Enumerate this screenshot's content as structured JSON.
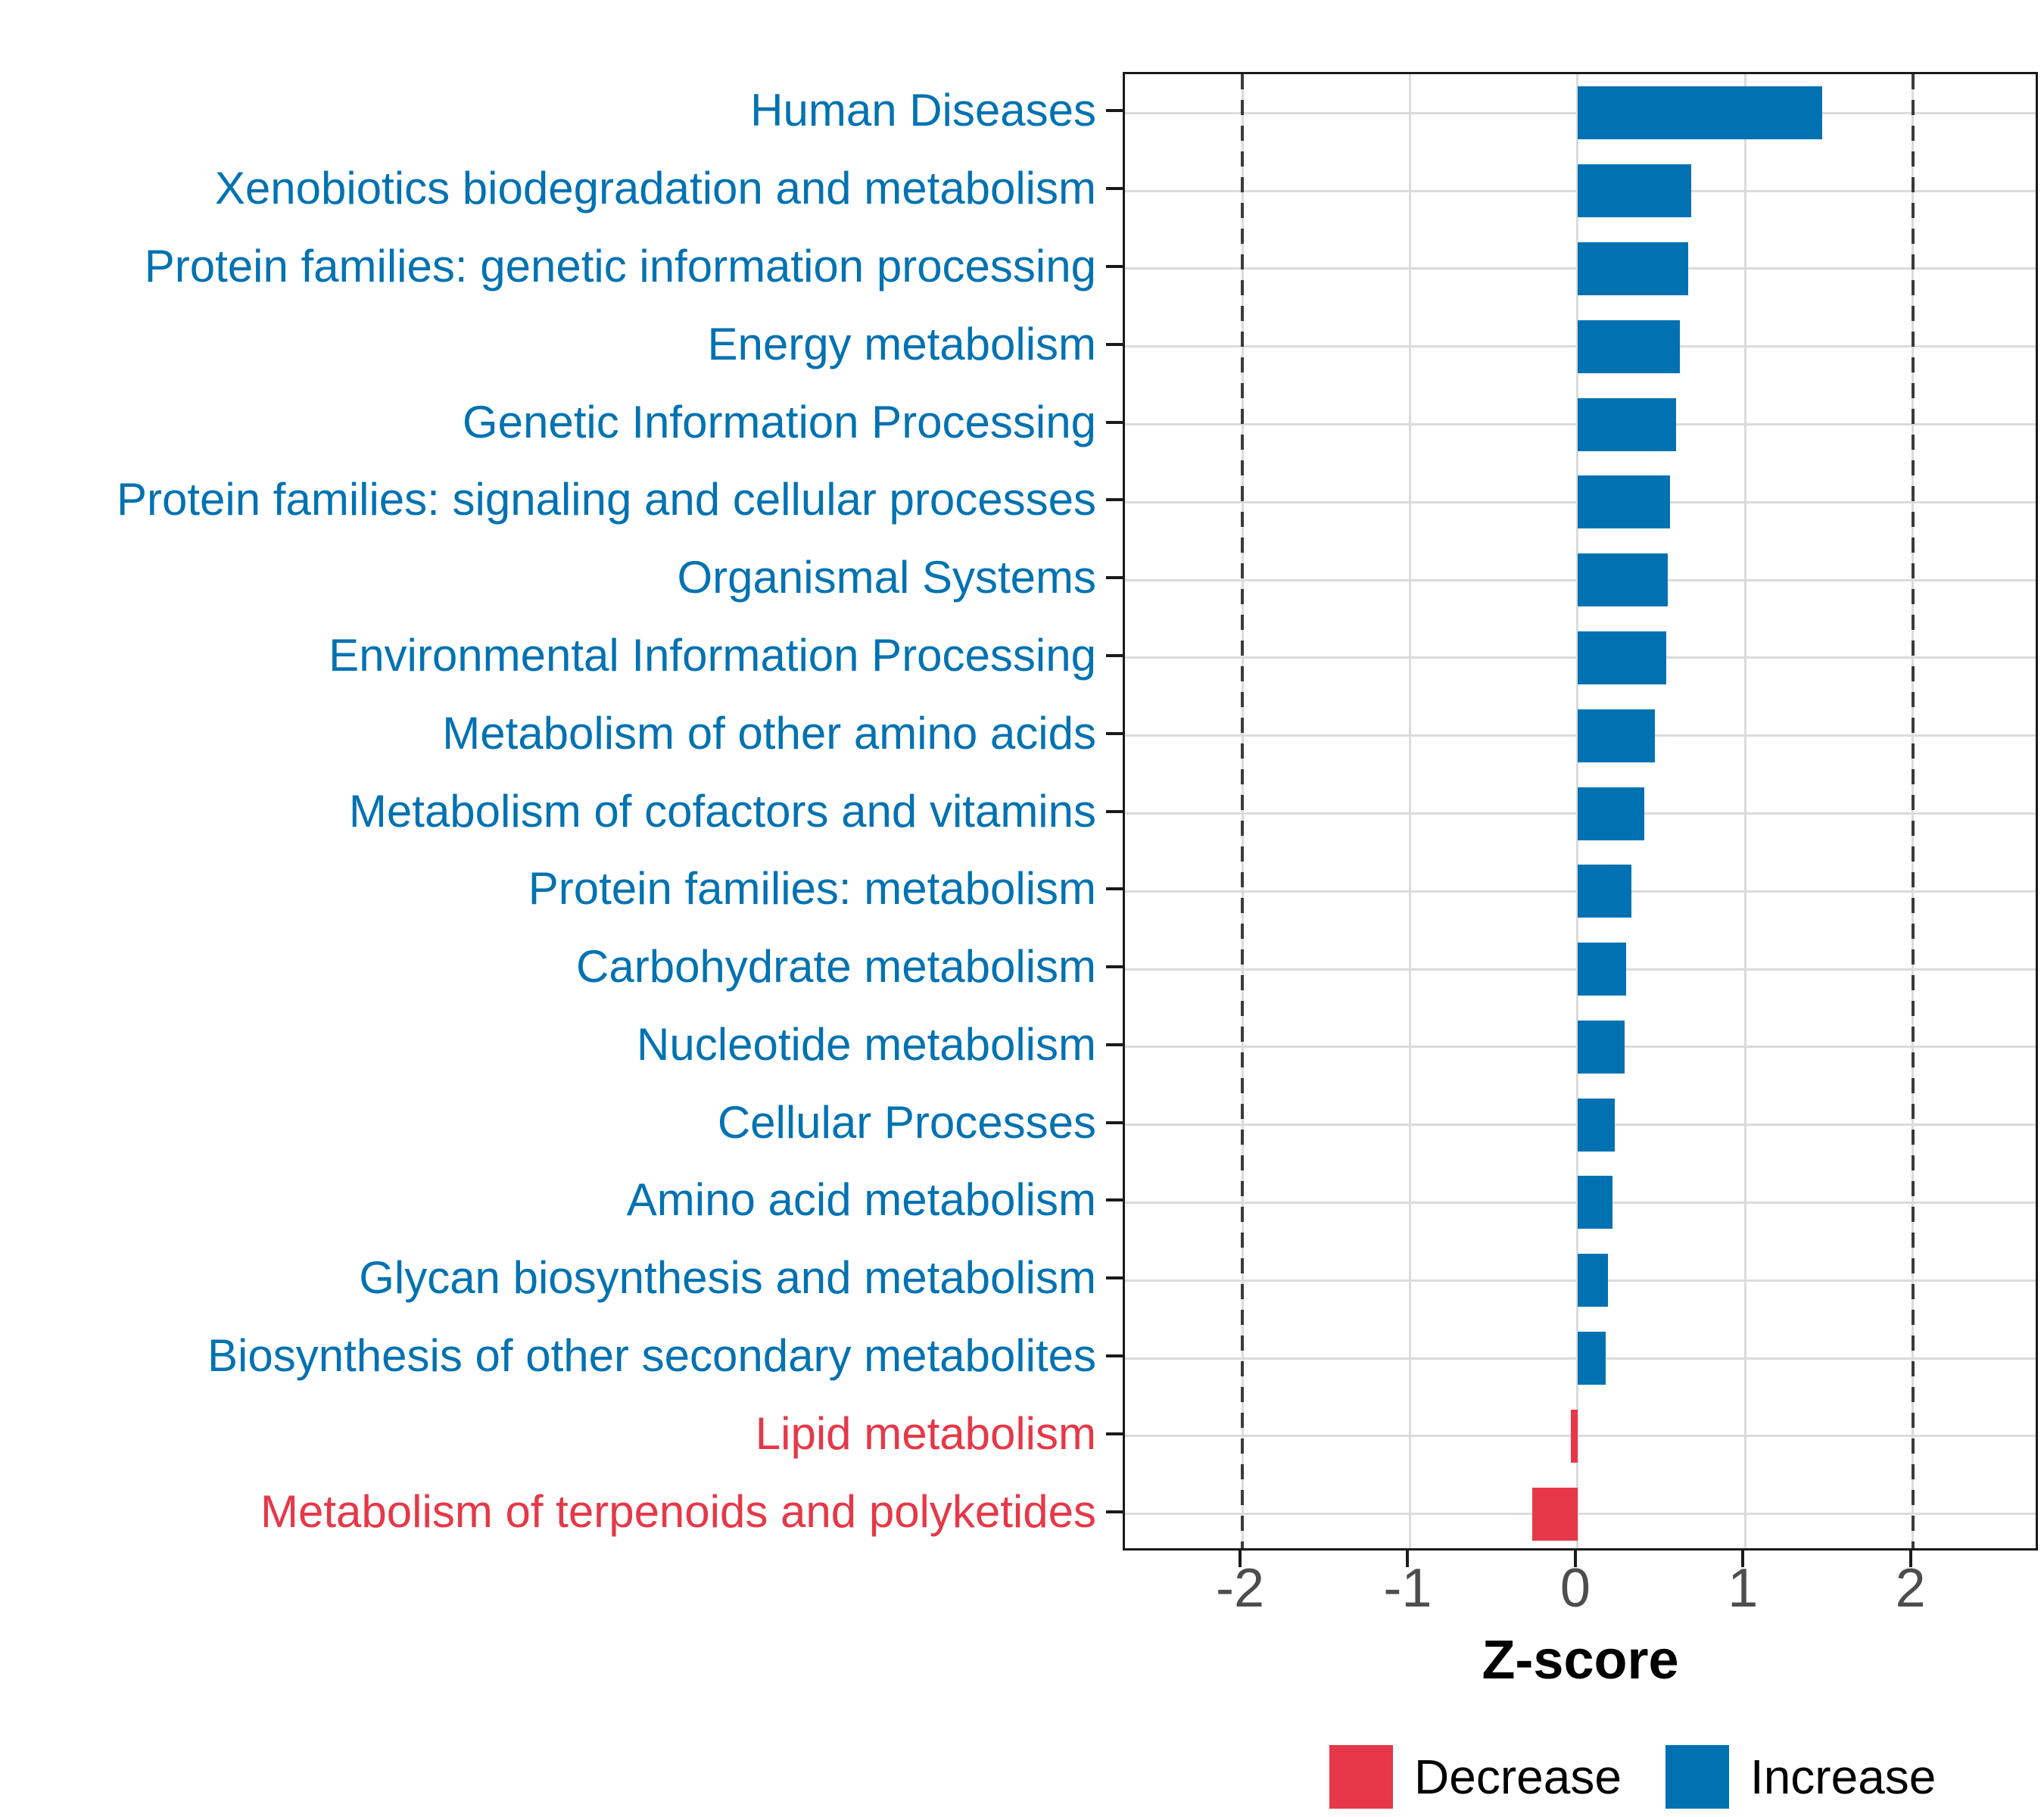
{
  "chart_data": {
    "type": "bar",
    "orientation": "horizontal",
    "xlabel": "Z-score",
    "ylabel": "",
    "xlim": [
      -2.7,
      2.76
    ],
    "x_ticks": [
      -2,
      -1,
      0,
      1,
      2
    ],
    "x_tick_labels": [
      "-2",
      "-1",
      "0",
      "1",
      "2"
    ],
    "reference_lines_dashed": [
      -2,
      2
    ],
    "grid": true,
    "legend_position": "bottom",
    "categories": [
      "Human Diseases",
      "Xenobiotics biodegradation and metabolism",
      "Protein families: genetic information processing",
      "Energy metabolism",
      "Genetic Information Processing",
      "Protein families: signaling and cellular processes",
      "Organismal Systems",
      "Environmental Information Processing",
      "Metabolism of other amino acids",
      "Metabolism of cofactors and vitamins",
      "Protein families: metabolism",
      "Carbohydrate metabolism",
      "Nucleotide metabolism",
      "Cellular Processes",
      "Amino acid metabolism",
      "Glycan biosynthesis and metabolism",
      "Biosynthesis of other secondary metabolites",
      "Lipid metabolism",
      "Metabolism of terpenoids and polyketides"
    ],
    "values": [
      1.46,
      0.68,
      0.66,
      0.61,
      0.59,
      0.55,
      0.54,
      0.53,
      0.46,
      0.4,
      0.32,
      0.29,
      0.28,
      0.22,
      0.21,
      0.18,
      0.17,
      -0.04,
      -0.27
    ],
    "groups": [
      "Increase",
      "Increase",
      "Increase",
      "Increase",
      "Increase",
      "Increase",
      "Increase",
      "Increase",
      "Increase",
      "Increase",
      "Increase",
      "Increase",
      "Increase",
      "Increase",
      "Increase",
      "Increase",
      "Increase",
      "Decrease",
      "Decrease"
    ],
    "colors": {
      "Increase": "#0072B2",
      "Decrease": "#E63848"
    },
    "style_colors": {
      "gridline": "#dbdbdb",
      "dashed_reference": "#3a3a3a",
      "axis_text": "#4d4d4d",
      "panel_border": "#1a1a1a"
    }
  },
  "legend": {
    "entries": [
      {
        "label": "Decrease",
        "color": "#E63848"
      },
      {
        "label": "Increase",
        "color": "#0072B2"
      }
    ]
  }
}
